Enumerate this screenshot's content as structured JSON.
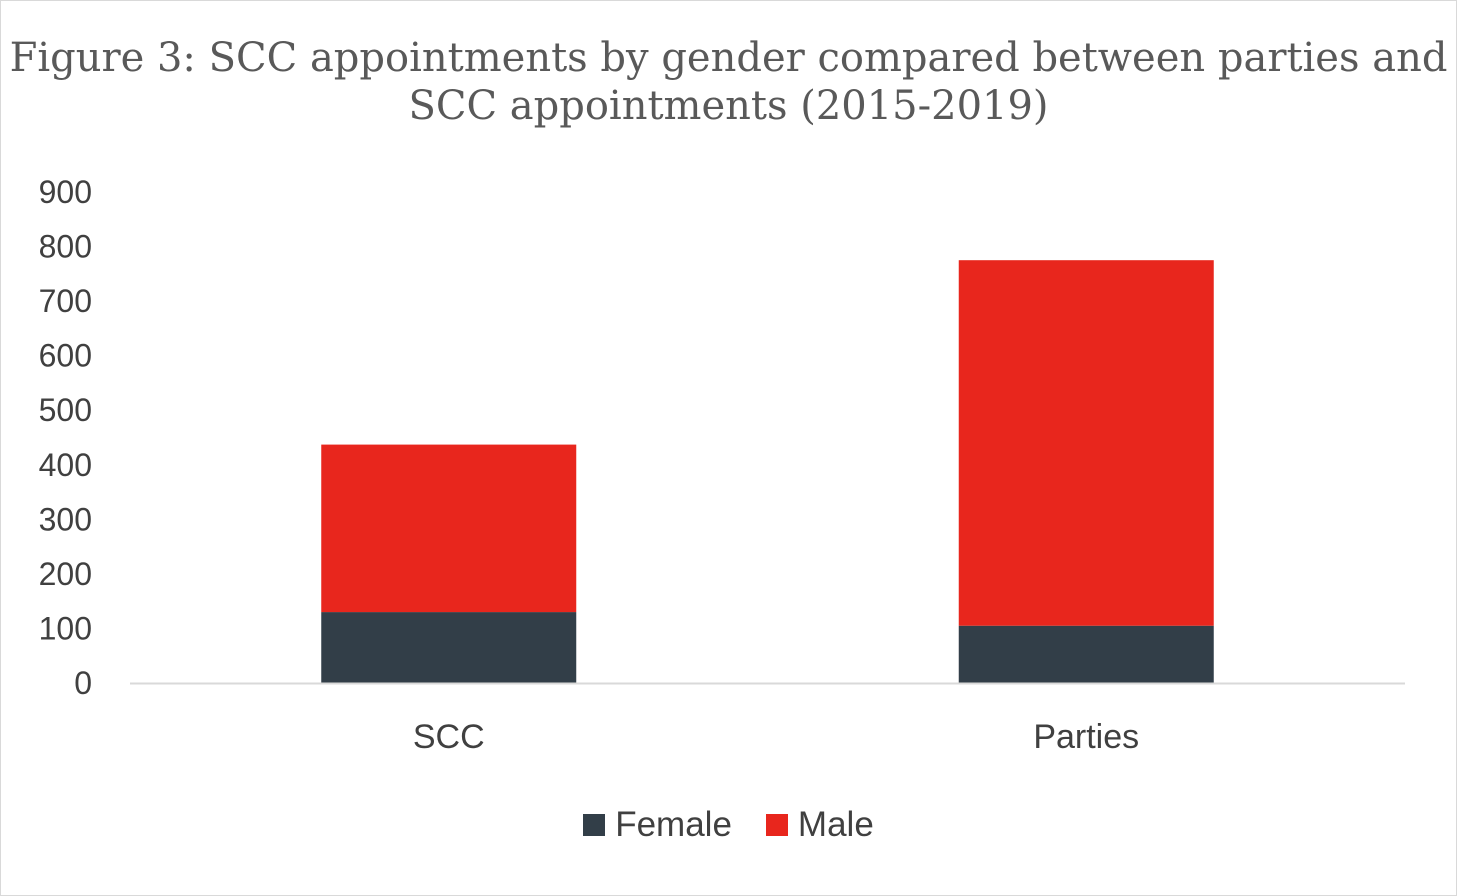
{
  "chart_data": {
    "type": "bar",
    "stacked": true,
    "title": "Figure 3: SCC appointments by gender compared between parties and SCC appointments (2015-2019)",
    "categories": [
      "SCC",
      "Parties"
    ],
    "series": [
      {
        "name": "Female",
        "values": [
          130,
          105
        ],
        "color": "#323e48"
      },
      {
        "name": "Male",
        "values": [
          307,
          670
        ],
        "color": "#e8261d"
      }
    ],
    "ylim": [
      0,
      900
    ],
    "yticks": [
      0,
      100,
      200,
      300,
      400,
      500,
      600,
      700,
      800,
      900
    ],
    "grid": false,
    "legend": "bottom"
  }
}
